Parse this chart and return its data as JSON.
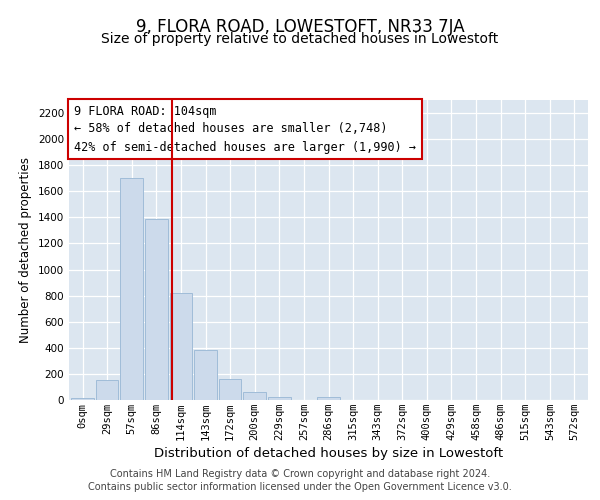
{
  "title": "9, FLORA ROAD, LOWESTOFT, NR33 7JA",
  "subtitle": "Size of property relative to detached houses in Lowestoft",
  "xlabel": "Distribution of detached houses by size in Lowestoft",
  "ylabel": "Number of detached properties",
  "bar_labels": [
    "0sqm",
    "29sqm",
    "57sqm",
    "86sqm",
    "114sqm",
    "143sqm",
    "172sqm",
    "200sqm",
    "229sqm",
    "257sqm",
    "286sqm",
    "315sqm",
    "343sqm",
    "372sqm",
    "400sqm",
    "429sqm",
    "458sqm",
    "486sqm",
    "515sqm",
    "543sqm",
    "572sqm"
  ],
  "bar_values": [
    15,
    155,
    1700,
    1390,
    820,
    380,
    160,
    65,
    25,
    0,
    25,
    0,
    0,
    0,
    0,
    0,
    0,
    0,
    0,
    0,
    0
  ],
  "bar_color": "#ccdaeb",
  "bar_edge_color": "#a0bcd8",
  "vline_x": 3.65,
  "vline_color": "#cc0000",
  "annotation_title": "9 FLORA ROAD: 104sqm",
  "annotation_line1": "← 58% of detached houses are smaller (2,748)",
  "annotation_line2": "42% of semi-detached houses are larger (1,990) →",
  "annotation_box_color": "#ffffff",
  "annotation_box_edge": "#cc0000",
  "ylim": [
    0,
    2300
  ],
  "yticks": [
    0,
    200,
    400,
    600,
    800,
    1000,
    1200,
    1400,
    1600,
    1800,
    2000,
    2200
  ],
  "plot_background": "#dce6f0",
  "footer_line1": "Contains HM Land Registry data © Crown copyright and database right 2024.",
  "footer_line2": "Contains public sector information licensed under the Open Government Licence v3.0.",
  "title_fontsize": 12,
  "subtitle_fontsize": 10,
  "xlabel_fontsize": 9.5,
  "ylabel_fontsize": 8.5,
  "tick_fontsize": 7.5,
  "annotation_fontsize": 8.5,
  "footer_fontsize": 7
}
